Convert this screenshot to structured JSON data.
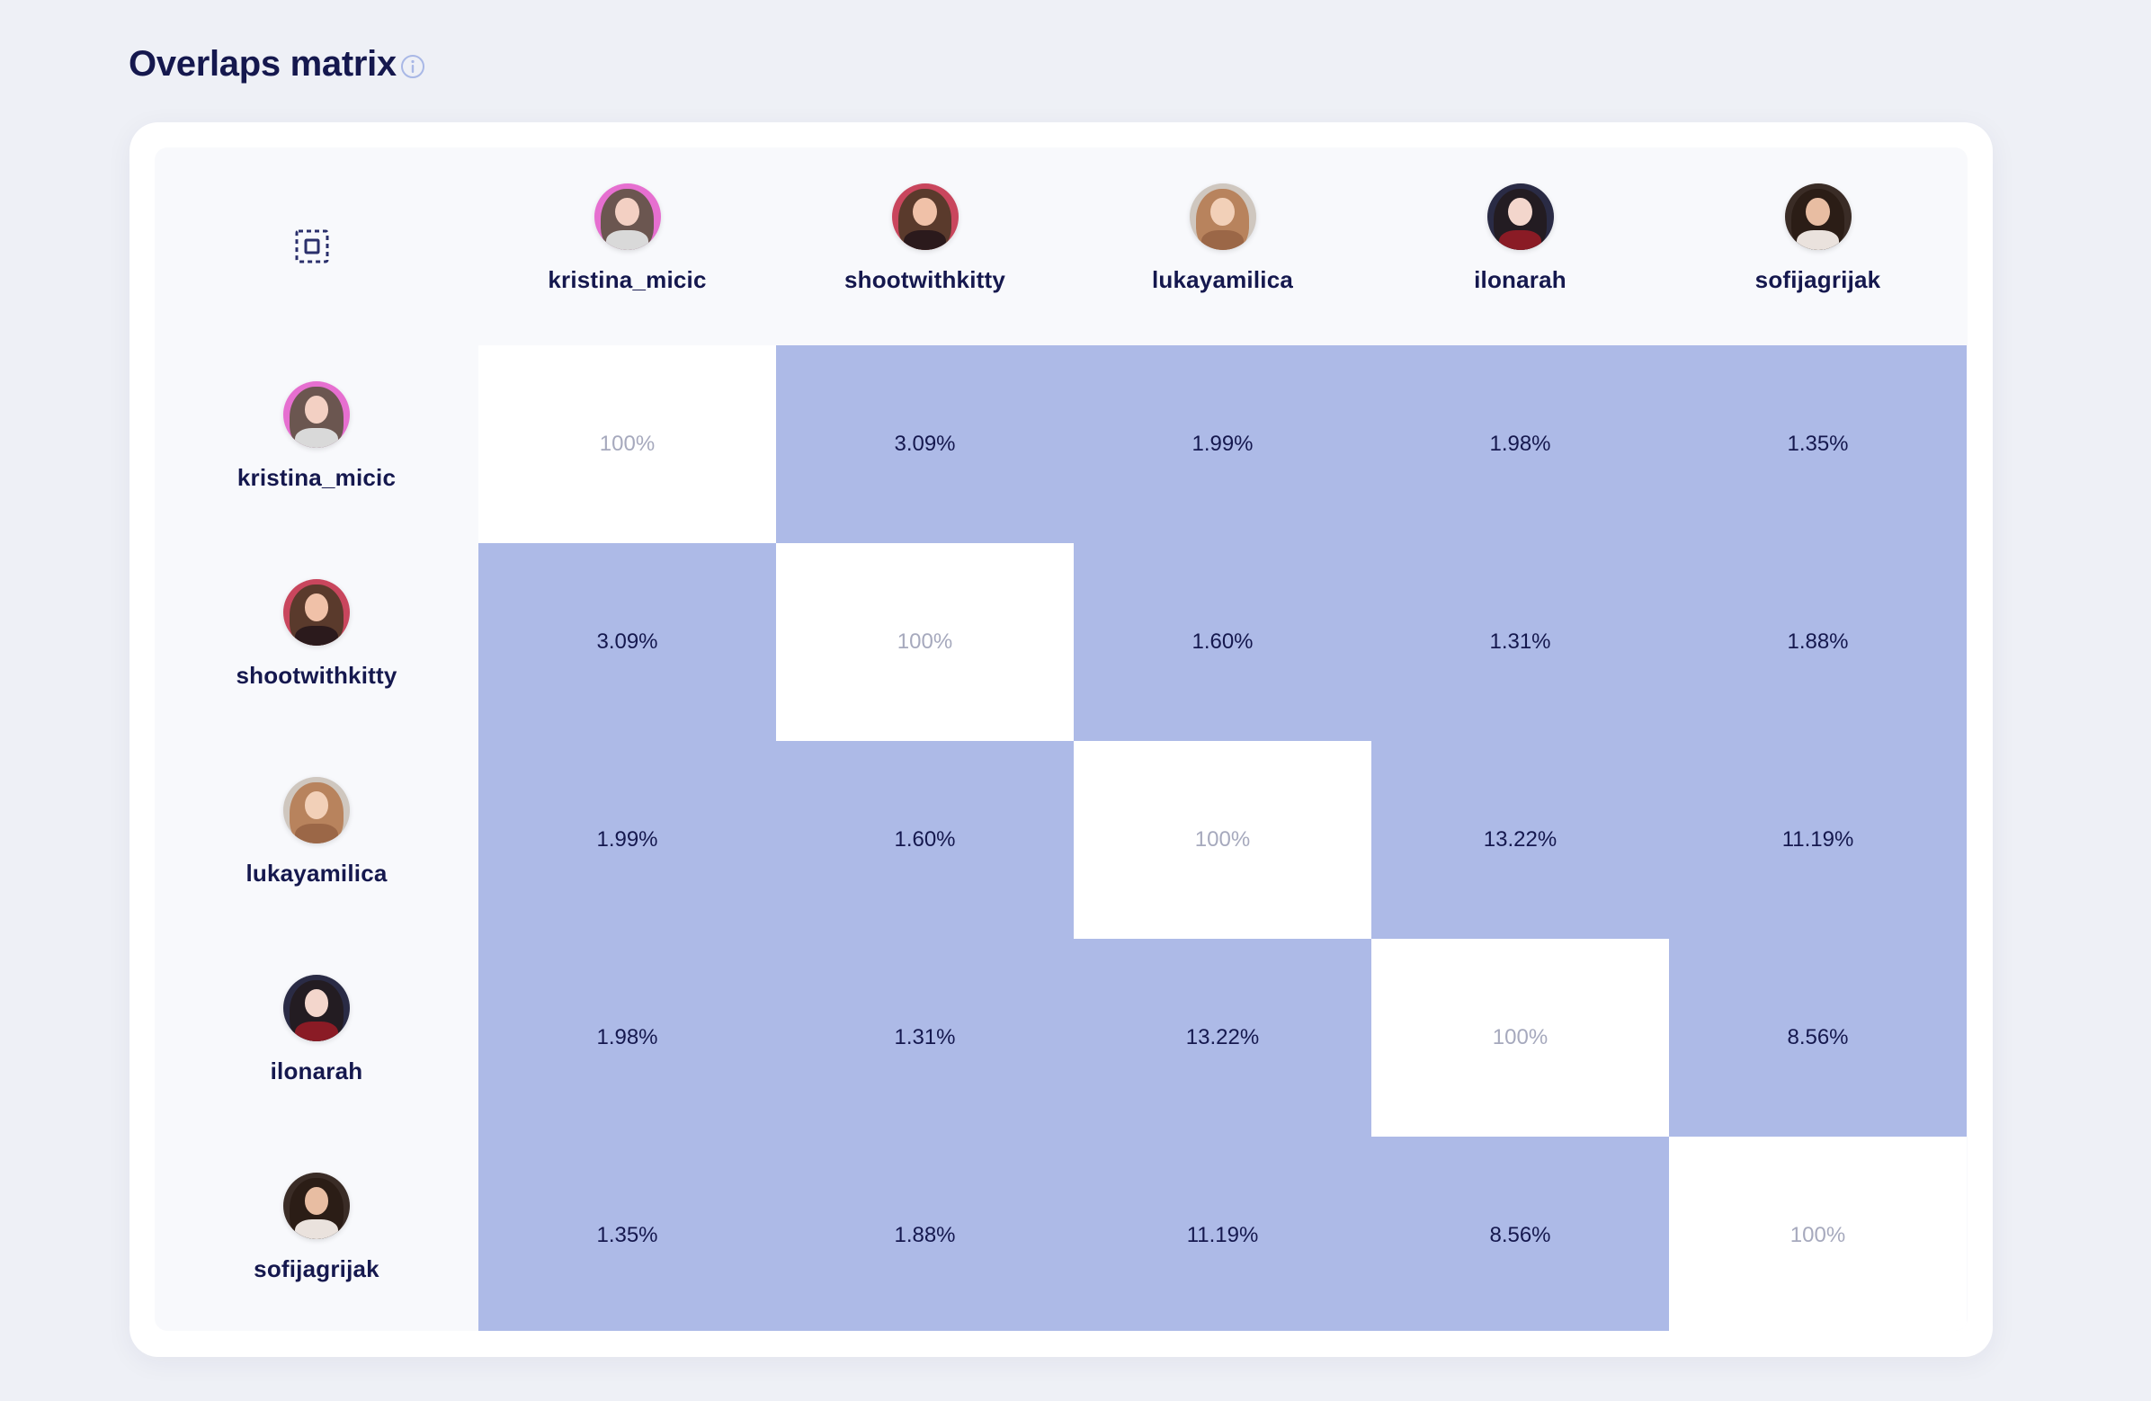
{
  "title": "Overlaps matrix",
  "icons": {
    "info": "info-circle-icon",
    "corner": "select-frame-icon"
  },
  "colors": {
    "cell_fill": "#adbae7",
    "diagonal_fill": "#ffffff",
    "title_text": "#15184e",
    "diagonal_text": "#a6a9bd"
  },
  "users": [
    {
      "name": "kristina_micic",
      "avatar": {
        "bg": "#e66fd0",
        "hair": "#6b5650",
        "face": "#f3d0c3",
        "body": "#d9d9d9"
      }
    },
    {
      "name": "shootwithkitty",
      "avatar": {
        "bg": "#c9465d",
        "hair": "#5a3a2c",
        "face": "#f0c1a8",
        "body": "#2b1a1c"
      }
    },
    {
      "name": "lukayamilica",
      "avatar": {
        "bg": "#cfc7bf",
        "hair": "#b8835d",
        "face": "#f2d0b8",
        "body": "#9b6747"
      }
    },
    {
      "name": "ilonarah",
      "avatar": {
        "bg": "#2a2b45",
        "hair": "#231c22",
        "face": "#f3d6cc",
        "body": "#8a1b25"
      }
    },
    {
      "name": "sofijagrijak",
      "avatar": {
        "bg": "#3a2c26",
        "hair": "#2b1d16",
        "face": "#e8bda2",
        "body": "#eae2dd"
      }
    }
  ],
  "matrix": [
    [
      "100%",
      "3.09%",
      "1.99%",
      "1.98%",
      "1.35%"
    ],
    [
      "3.09%",
      "100%",
      "1.60%",
      "1.31%",
      "1.88%"
    ],
    [
      "1.99%",
      "1.60%",
      "100%",
      "13.22%",
      "11.19%"
    ],
    [
      "1.98%",
      "1.31%",
      "13.22%",
      "100%",
      "8.56%"
    ],
    [
      "1.35%",
      "1.88%",
      "11.19%",
      "8.56%",
      "100%"
    ]
  ]
}
